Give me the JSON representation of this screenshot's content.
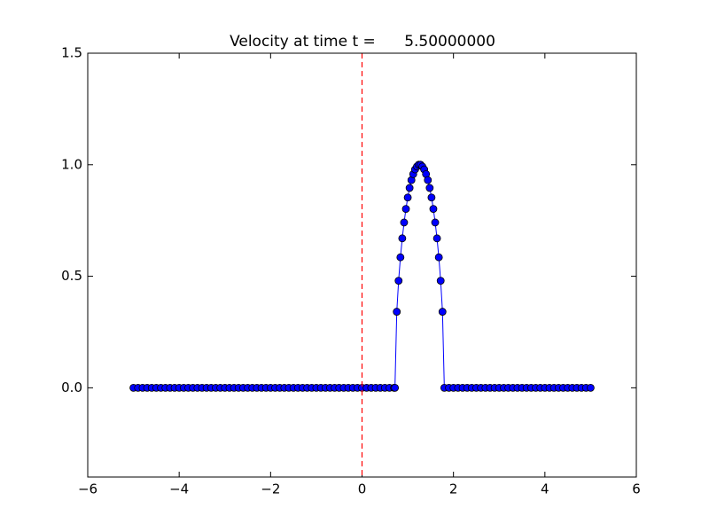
{
  "chart_data": {
    "type": "line",
    "title": "Velocity at time t =      5.50000000",
    "x": [
      -5.0,
      -4.9,
      -4.8,
      -4.7,
      -4.6,
      -4.5,
      -4.4,
      -4.3,
      -4.2,
      -4.1,
      -4.0,
      -3.9,
      -3.8,
      -3.7,
      -3.6,
      -3.5,
      -3.4,
      -3.3,
      -3.2,
      -3.1,
      -3.0,
      -2.9,
      -2.8,
      -2.7,
      -2.6,
      -2.5,
      -2.4,
      -2.3,
      -2.2,
      -2.1,
      -2.0,
      -1.9,
      -1.8,
      -1.7,
      -1.6,
      -1.5,
      -1.4,
      -1.3,
      -1.2,
      -1.1,
      -1.0,
      -0.9,
      -0.8,
      -0.7,
      -0.6,
      -0.5,
      -0.4,
      -0.3,
      -0.2,
      -0.1,
      0.0,
      0.1,
      0.2,
      0.3,
      0.4,
      0.5,
      0.6,
      0.7,
      0.72,
      0.76,
      0.8,
      0.84,
      0.88,
      0.92,
      0.96,
      1.0,
      1.04,
      1.08,
      1.12,
      1.16,
      1.2,
      1.24,
      1.28,
      1.32,
      1.36,
      1.4,
      1.44,
      1.48,
      1.52,
      1.56,
      1.6,
      1.64,
      1.68,
      1.72,
      1.76,
      1.8,
      1.9,
      2.0,
      2.1,
      2.2,
      2.3,
      2.4,
      2.5,
      2.6,
      2.7,
      2.8,
      2.9,
      3.0,
      3.1,
      3.2,
      3.3,
      3.4,
      3.5,
      3.6,
      3.7,
      3.8,
      3.9,
      4.0,
      4.1,
      4.2,
      4.3,
      4.4,
      4.5,
      4.6,
      4.7,
      4.8,
      4.9,
      5.0
    ],
    "series": [
      {
        "color": "#0000ff",
        "values": [
          0,
          0,
          0,
          0,
          0,
          0,
          0,
          0,
          0,
          0,
          0,
          0,
          0,
          0,
          0,
          0,
          0,
          0,
          0,
          0,
          0,
          0,
          0,
          0,
          0,
          0,
          0,
          0,
          0,
          0,
          0,
          0,
          0,
          0,
          0,
          0,
          0,
          0,
          0,
          0,
          0,
          0,
          0,
          0,
          0,
          0,
          0,
          0,
          0,
          0,
          0,
          0,
          0,
          0,
          0,
          0,
          0,
          0,
          0,
          0.341,
          0.48,
          0.585,
          0.67,
          0.741,
          0.802,
          0.853,
          0.896,
          0.931,
          0.958,
          0.979,
          0.992,
          1.0,
          1.0,
          0.992,
          0.979,
          0.958,
          0.931,
          0.896,
          0.853,
          0.802,
          0.741,
          0.67,
          0.585,
          0.48,
          0.341,
          0,
          0,
          0,
          0,
          0,
          0,
          0,
          0,
          0,
          0,
          0,
          0,
          0,
          0,
          0,
          0,
          0,
          0,
          0,
          0,
          0,
          0,
          0,
          0,
          0,
          0,
          0,
          0,
          0,
          0,
          0,
          0,
          0
        ]
      }
    ],
    "vline": {
      "x": 0,
      "color": "#ff0000"
    },
    "xlim": [
      -6,
      6
    ],
    "xticks": [
      {
        "value": -6,
        "label": "−6"
      },
      {
        "value": -4,
        "label": "−4"
      },
      {
        "value": -2,
        "label": "−2"
      },
      0,
      2,
      4,
      6
    ],
    "ylim": [
      -0.4,
      1.5
    ],
    "yticks": [
      {
        "value": 0,
        "label": "0.0"
      },
      0.5,
      {
        "value": 1,
        "label": "1.0"
      },
      1.5
    ],
    "grid": false
  }
}
